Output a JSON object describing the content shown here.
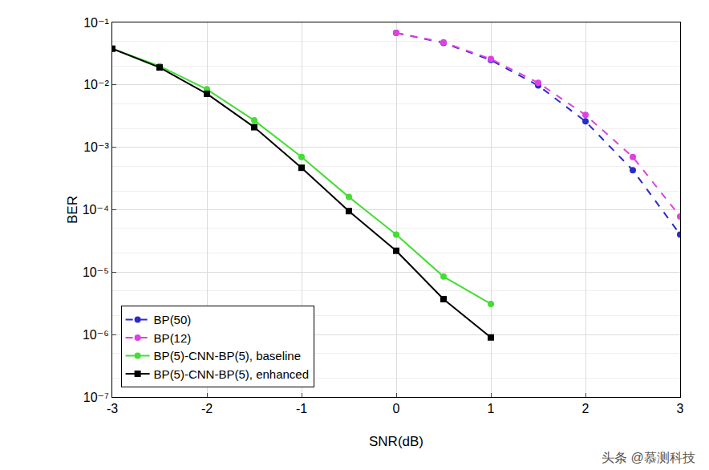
{
  "chart_data": {
    "type": "line",
    "x_label": "SNR(dB)",
    "y_label": "BER",
    "log": "y",
    "grid": true,
    "legend": "lower left",
    "xlim": [
      -3,
      3
    ],
    "xticks": [
      -3,
      -2,
      -1,
      0,
      1,
      2,
      3
    ],
    "ylim": [
      1e-07,
      0.1
    ],
    "yticks": [
      {
        "value": 1e-07,
        "label": "10⁻⁷"
      },
      {
        "value": 1e-06,
        "label": "10⁻⁶"
      },
      {
        "value": 1e-05,
        "label": "10⁻⁵"
      },
      {
        "value": 0.0001,
        "label": "10⁻⁴"
      },
      {
        "value": 0.001,
        "label": "10⁻³"
      },
      {
        "value": 0.01,
        "label": "10⁻²"
      },
      {
        "value": 0.1,
        "label": "10⁻¹"
      }
    ],
    "series": [
      {
        "name": "BP(50)",
        "color": "#2b2bcc",
        "marker": "circle",
        "line_style": "dash",
        "x": [
          0,
          0.5,
          1,
          1.5,
          2,
          2.5,
          3
        ],
        "values": [
          0.068,
          0.047,
          0.025,
          0.0098,
          0.0026,
          0.00043,
          4e-05
        ]
      },
      {
        "name": "BP(12)",
        "color": "#e040e0",
        "marker": "circle",
        "line_style": "dash",
        "x": [
          0,
          0.5,
          1,
          1.5,
          2,
          2.5,
          3
        ],
        "values": [
          0.068,
          0.048,
          0.026,
          0.0108,
          0.0033,
          0.0007,
          7.8e-05
        ]
      },
      {
        "name": "BP(5)-CNN-BP(5), baseline",
        "color": "#44dd33",
        "marker": "circle",
        "line_style": "solid",
        "x": [
          -3,
          -2.5,
          -2,
          -1.5,
          -1,
          -0.5,
          0,
          0.5,
          1
        ],
        "values": [
          0.038,
          0.02,
          0.0085,
          0.0027,
          0.0007,
          0.00016,
          4e-05,
          8.5e-06,
          3.1e-06
        ]
      },
      {
        "name": "BP(5)-CNN-BP(5), enhanced",
        "color": "#000000",
        "marker": "square",
        "line_style": "solid",
        "x": [
          -3,
          -2.5,
          -2,
          -1.5,
          -1,
          -0.5,
          0,
          0.5,
          1
        ],
        "values": [
          0.038,
          0.019,
          0.0072,
          0.0021,
          0.00047,
          9.5e-05,
          2.2e-05,
          3.7e-06,
          9e-07
        ]
      }
    ],
    "annotations": [
      {
        "text": "头条 @慕测科技"
      }
    ]
  }
}
